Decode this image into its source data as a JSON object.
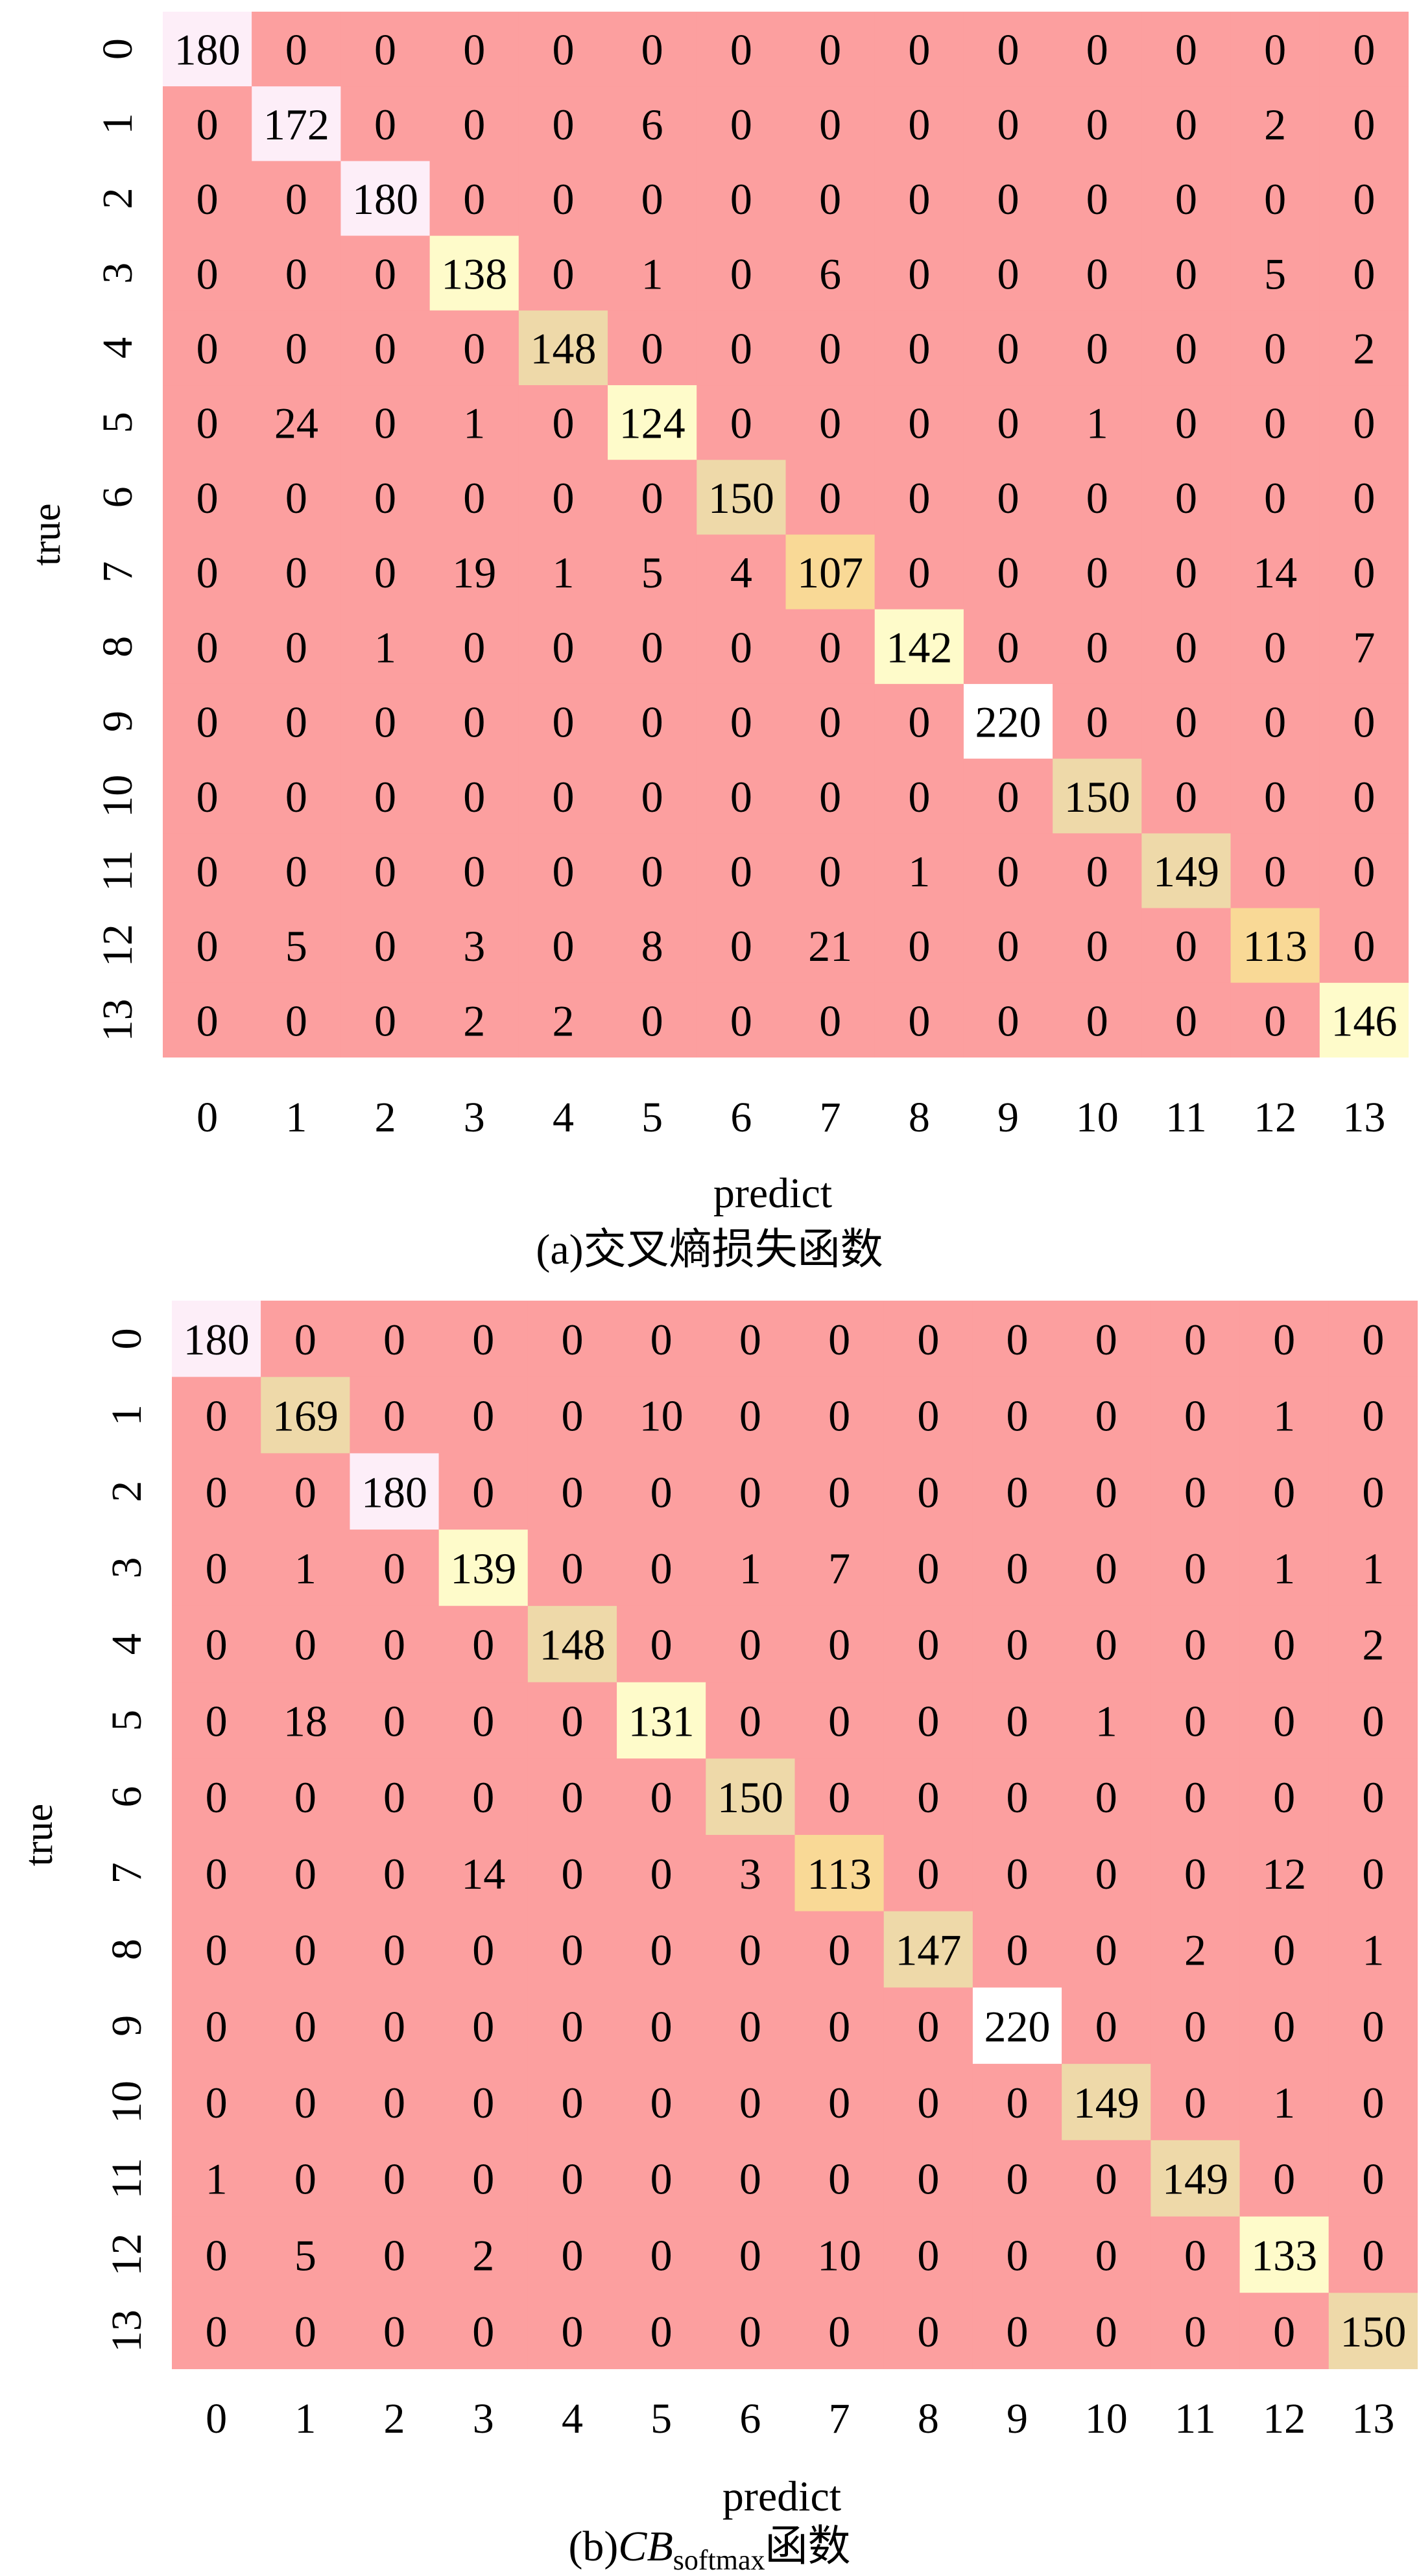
{
  "chart_data": [
    {
      "type": "heatmap",
      "xlabel": "predict",
      "ylabel": "true",
      "caption": "(a)交叉熵损失函数",
      "x_ticks": [
        "0",
        "1",
        "2",
        "3",
        "4",
        "5",
        "6",
        "7",
        "8",
        "9",
        "10",
        "11",
        "12",
        "13"
      ],
      "y_ticks": [
        "0",
        "1",
        "2",
        "3",
        "4",
        "5",
        "6",
        "7",
        "8",
        "9",
        "10",
        "11",
        "12",
        "13"
      ],
      "matrix": [
        [
          180,
          0,
          0,
          0,
          0,
          0,
          0,
          0,
          0,
          0,
          0,
          0,
          0,
          0
        ],
        [
          0,
          172,
          0,
          0,
          0,
          6,
          0,
          0,
          0,
          0,
          0,
          0,
          2,
          0
        ],
        [
          0,
          0,
          180,
          0,
          0,
          0,
          0,
          0,
          0,
          0,
          0,
          0,
          0,
          0
        ],
        [
          0,
          0,
          0,
          138,
          0,
          1,
          0,
          6,
          0,
          0,
          0,
          0,
          5,
          0
        ],
        [
          0,
          0,
          0,
          0,
          148,
          0,
          0,
          0,
          0,
          0,
          0,
          0,
          0,
          2
        ],
        [
          0,
          24,
          0,
          1,
          0,
          124,
          0,
          0,
          0,
          0,
          1,
          0,
          0,
          0
        ],
        [
          0,
          0,
          0,
          0,
          0,
          0,
          150,
          0,
          0,
          0,
          0,
          0,
          0,
          0
        ],
        [
          0,
          0,
          0,
          19,
          1,
          5,
          4,
          107,
          0,
          0,
          0,
          0,
          14,
          0
        ],
        [
          0,
          0,
          1,
          0,
          0,
          0,
          0,
          0,
          142,
          0,
          0,
          0,
          0,
          7
        ],
        [
          0,
          0,
          0,
          0,
          0,
          0,
          0,
          0,
          0,
          220,
          0,
          0,
          0,
          0
        ],
        [
          0,
          0,
          0,
          0,
          0,
          0,
          0,
          0,
          0,
          0,
          150,
          0,
          0,
          0
        ],
        [
          0,
          0,
          0,
          0,
          0,
          0,
          0,
          0,
          1,
          0,
          0,
          149,
          0,
          0
        ],
        [
          0,
          5,
          0,
          3,
          0,
          8,
          0,
          21,
          0,
          0,
          0,
          0,
          113,
          0
        ],
        [
          0,
          0,
          0,
          2,
          2,
          0,
          0,
          0,
          0,
          0,
          0,
          0,
          0,
          146
        ]
      ]
    },
    {
      "type": "heatmap",
      "xlabel": "predict",
      "ylabel": "true",
      "caption_prefix": "(b)",
      "caption_italic": "CB",
      "caption_sub": "softmax",
      "caption_suffix": "函数",
      "x_ticks": [
        "0",
        "1",
        "2",
        "3",
        "4",
        "5",
        "6",
        "7",
        "8",
        "9",
        "10",
        "11",
        "12",
        "13"
      ],
      "y_ticks": [
        "0",
        "1",
        "2",
        "3",
        "4",
        "5",
        "6",
        "7",
        "8",
        "9",
        "10",
        "11",
        "12",
        "13"
      ],
      "matrix": [
        [
          180,
          0,
          0,
          0,
          0,
          0,
          0,
          0,
          0,
          0,
          0,
          0,
          0,
          0
        ],
        [
          0,
          169,
          0,
          0,
          0,
          10,
          0,
          0,
          0,
          0,
          0,
          0,
          1,
          0
        ],
        [
          0,
          0,
          180,
          0,
          0,
          0,
          0,
          0,
          0,
          0,
          0,
          0,
          0,
          0
        ],
        [
          0,
          1,
          0,
          139,
          0,
          0,
          1,
          7,
          0,
          0,
          0,
          0,
          1,
          1
        ],
        [
          0,
          0,
          0,
          0,
          148,
          0,
          0,
          0,
          0,
          0,
          0,
          0,
          0,
          2
        ],
        [
          0,
          18,
          0,
          0,
          0,
          131,
          0,
          0,
          0,
          0,
          1,
          0,
          0,
          0
        ],
        [
          0,
          0,
          0,
          0,
          0,
          0,
          150,
          0,
          0,
          0,
          0,
          0,
          0,
          0
        ],
        [
          0,
          0,
          0,
          14,
          0,
          0,
          3,
          113,
          0,
          0,
          0,
          0,
          12,
          0
        ],
        [
          0,
          0,
          0,
          0,
          0,
          0,
          0,
          0,
          147,
          0,
          0,
          2,
          0,
          1
        ],
        [
          0,
          0,
          0,
          0,
          0,
          0,
          0,
          0,
          0,
          220,
          0,
          0,
          0,
          0
        ],
        [
          0,
          0,
          0,
          0,
          0,
          0,
          0,
          0,
          0,
          0,
          149,
          0,
          1,
          0
        ],
        [
          1,
          0,
          0,
          0,
          0,
          0,
          0,
          0,
          0,
          0,
          0,
          149,
          0,
          0
        ],
        [
          0,
          5,
          0,
          2,
          0,
          0,
          0,
          10,
          0,
          0,
          0,
          0,
          133,
          0
        ],
        [
          0,
          0,
          0,
          0,
          0,
          0,
          0,
          0,
          0,
          0,
          0,
          0,
          0,
          150
        ]
      ]
    }
  ],
  "colors": {
    "zero": "#fc9f9f",
    "orange": "#f9d996",
    "yellow": "#fefbca",
    "tan": "#eed9a9",
    "light_pink": "#fdeef8",
    "white": "#ffffff"
  }
}
